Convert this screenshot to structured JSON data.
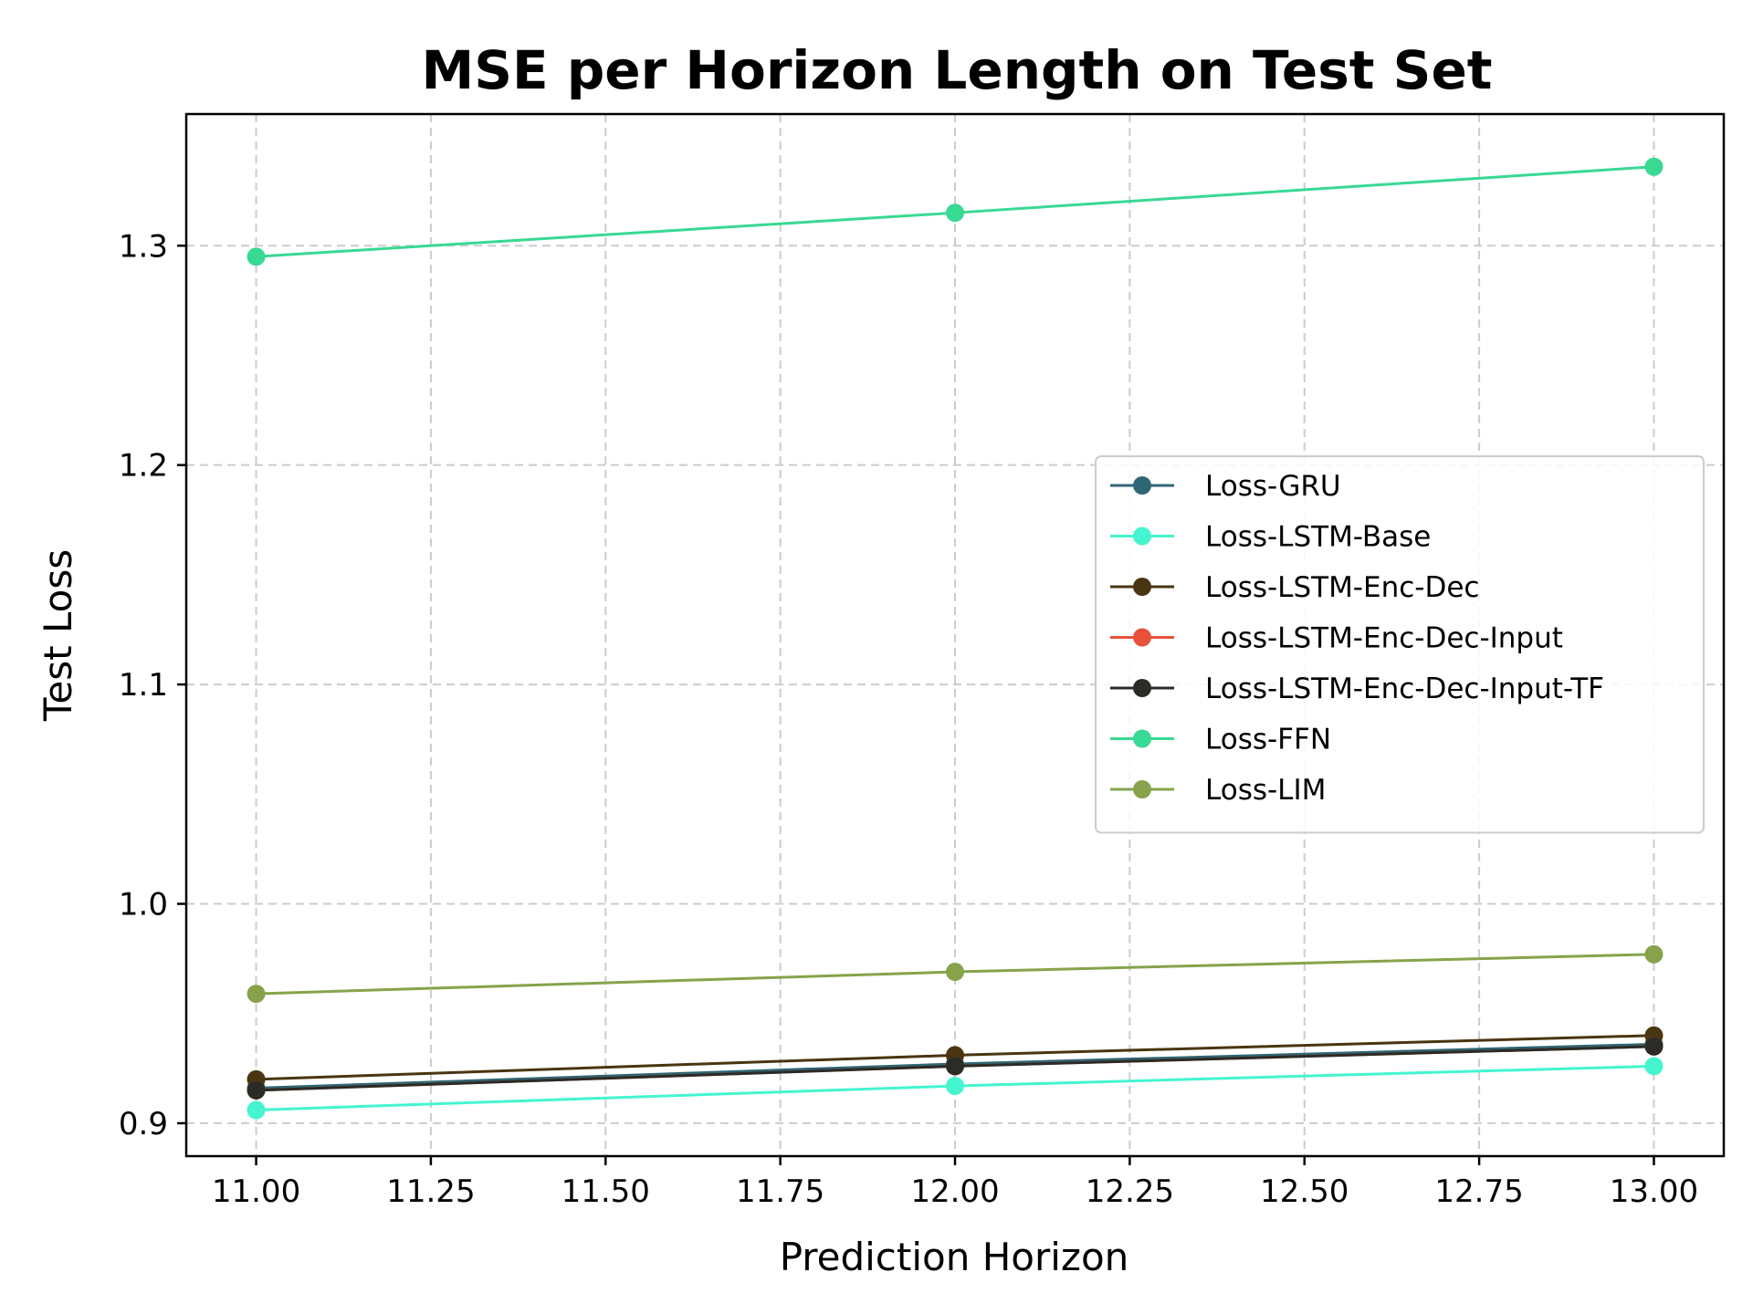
{
  "chart_data": {
    "type": "line",
    "title": "MSE per Horizon Length on Test Set",
    "xlabel": "Prediction Horizon",
    "ylabel": "Test Loss",
    "x": [
      11,
      12,
      13
    ],
    "xlim": [
      10.9,
      13.1
    ],
    "ylim": [
      0.885,
      1.36
    ],
    "xticks": [
      "11.00",
      "11.25",
      "11.50",
      "11.75",
      "12.00",
      "12.25",
      "12.50",
      "12.75",
      "13.00"
    ],
    "yticks": [
      "0.9",
      "1.0",
      "1.1",
      "1.2",
      "1.3"
    ],
    "grid": true,
    "legend_position": "center-right",
    "series": [
      {
        "name": "Loss-GRU",
        "color": "#2e6673",
        "values": [
          0.916,
          0.927,
          0.936
        ]
      },
      {
        "name": "Loss-LSTM-Base",
        "color": "#44f5cf",
        "values": [
          0.906,
          0.917,
          0.926
        ]
      },
      {
        "name": "Loss-LSTM-Enc-Dec",
        "color": "#4a3511",
        "values": [
          0.92,
          0.931,
          0.94
        ]
      },
      {
        "name": "Loss-LSTM-Enc-Dec-Input",
        "color": "#e8513a",
        "values": [
          0.915,
          0.926,
          0.935
        ]
      },
      {
        "name": "Loss-LSTM-Enc-Dec-Input-TF",
        "color": "#2b2b27",
        "values": [
          0.915,
          0.926,
          0.935
        ]
      },
      {
        "name": "Loss-FFN",
        "color": "#38d993",
        "values": [
          1.295,
          1.315,
          1.336
        ]
      },
      {
        "name": "Loss-LIM",
        "color": "#86a34c",
        "values": [
          0.959,
          0.969,
          0.977
        ]
      }
    ]
  }
}
